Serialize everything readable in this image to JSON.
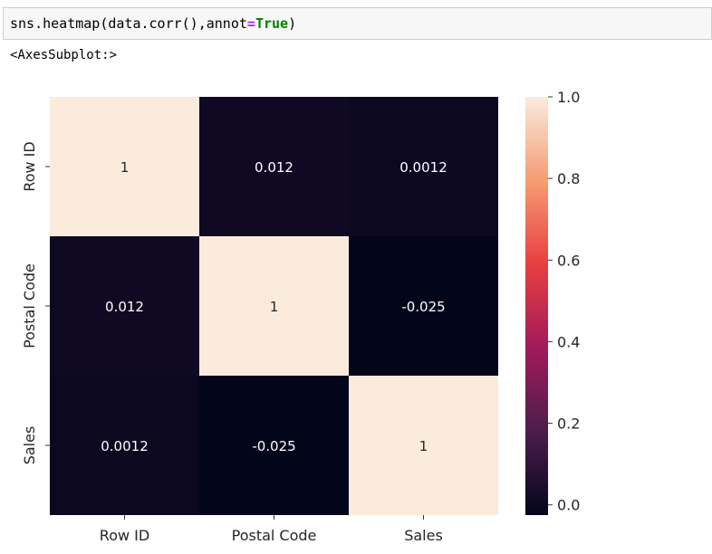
{
  "code_cell": {
    "prefix": "sns.heatmap(data.corr(),annot",
    "equals": "=",
    "true_kw": "True",
    "suffix": ")"
  },
  "output_text": "<AxesSubplot:>",
  "colors": {
    "rocket_stops": [
      "#03051a",
      "#4c1d4b",
      "#a11a5b",
      "#e83f3f",
      "#f69c73",
      "#faebdd"
    ],
    "annot_dark": "#262626",
    "annot_light": "#ffffff"
  },
  "chart_data": {
    "type": "heatmap",
    "title": "",
    "xlabel": "",
    "ylabel": "",
    "x_categories": [
      "Row ID",
      "Postal Code",
      "Sales"
    ],
    "y_categories": [
      "Row ID",
      "Postal Code",
      "Sales"
    ],
    "values": [
      [
        1,
        0.012,
        0.0012
      ],
      [
        0.012,
        1,
        -0.025
      ],
      [
        0.0012,
        -0.025,
        1
      ]
    ],
    "annotations": [
      [
        "1",
        "0.012",
        "0.0012"
      ],
      [
        "0.012",
        "1",
        "-0.025"
      ],
      [
        "0.0012",
        "-0.025",
        "1"
      ]
    ],
    "colorbar": {
      "vmin": -0.025,
      "vmax": 1,
      "ticks": [
        0.0,
        0.2,
        0.4,
        0.6,
        0.8,
        1.0
      ],
      "tick_labels": [
        "0.0",
        "0.2",
        "0.4",
        "0.6",
        "0.8",
        "1.0"
      ],
      "colormap": "rocket"
    }
  }
}
